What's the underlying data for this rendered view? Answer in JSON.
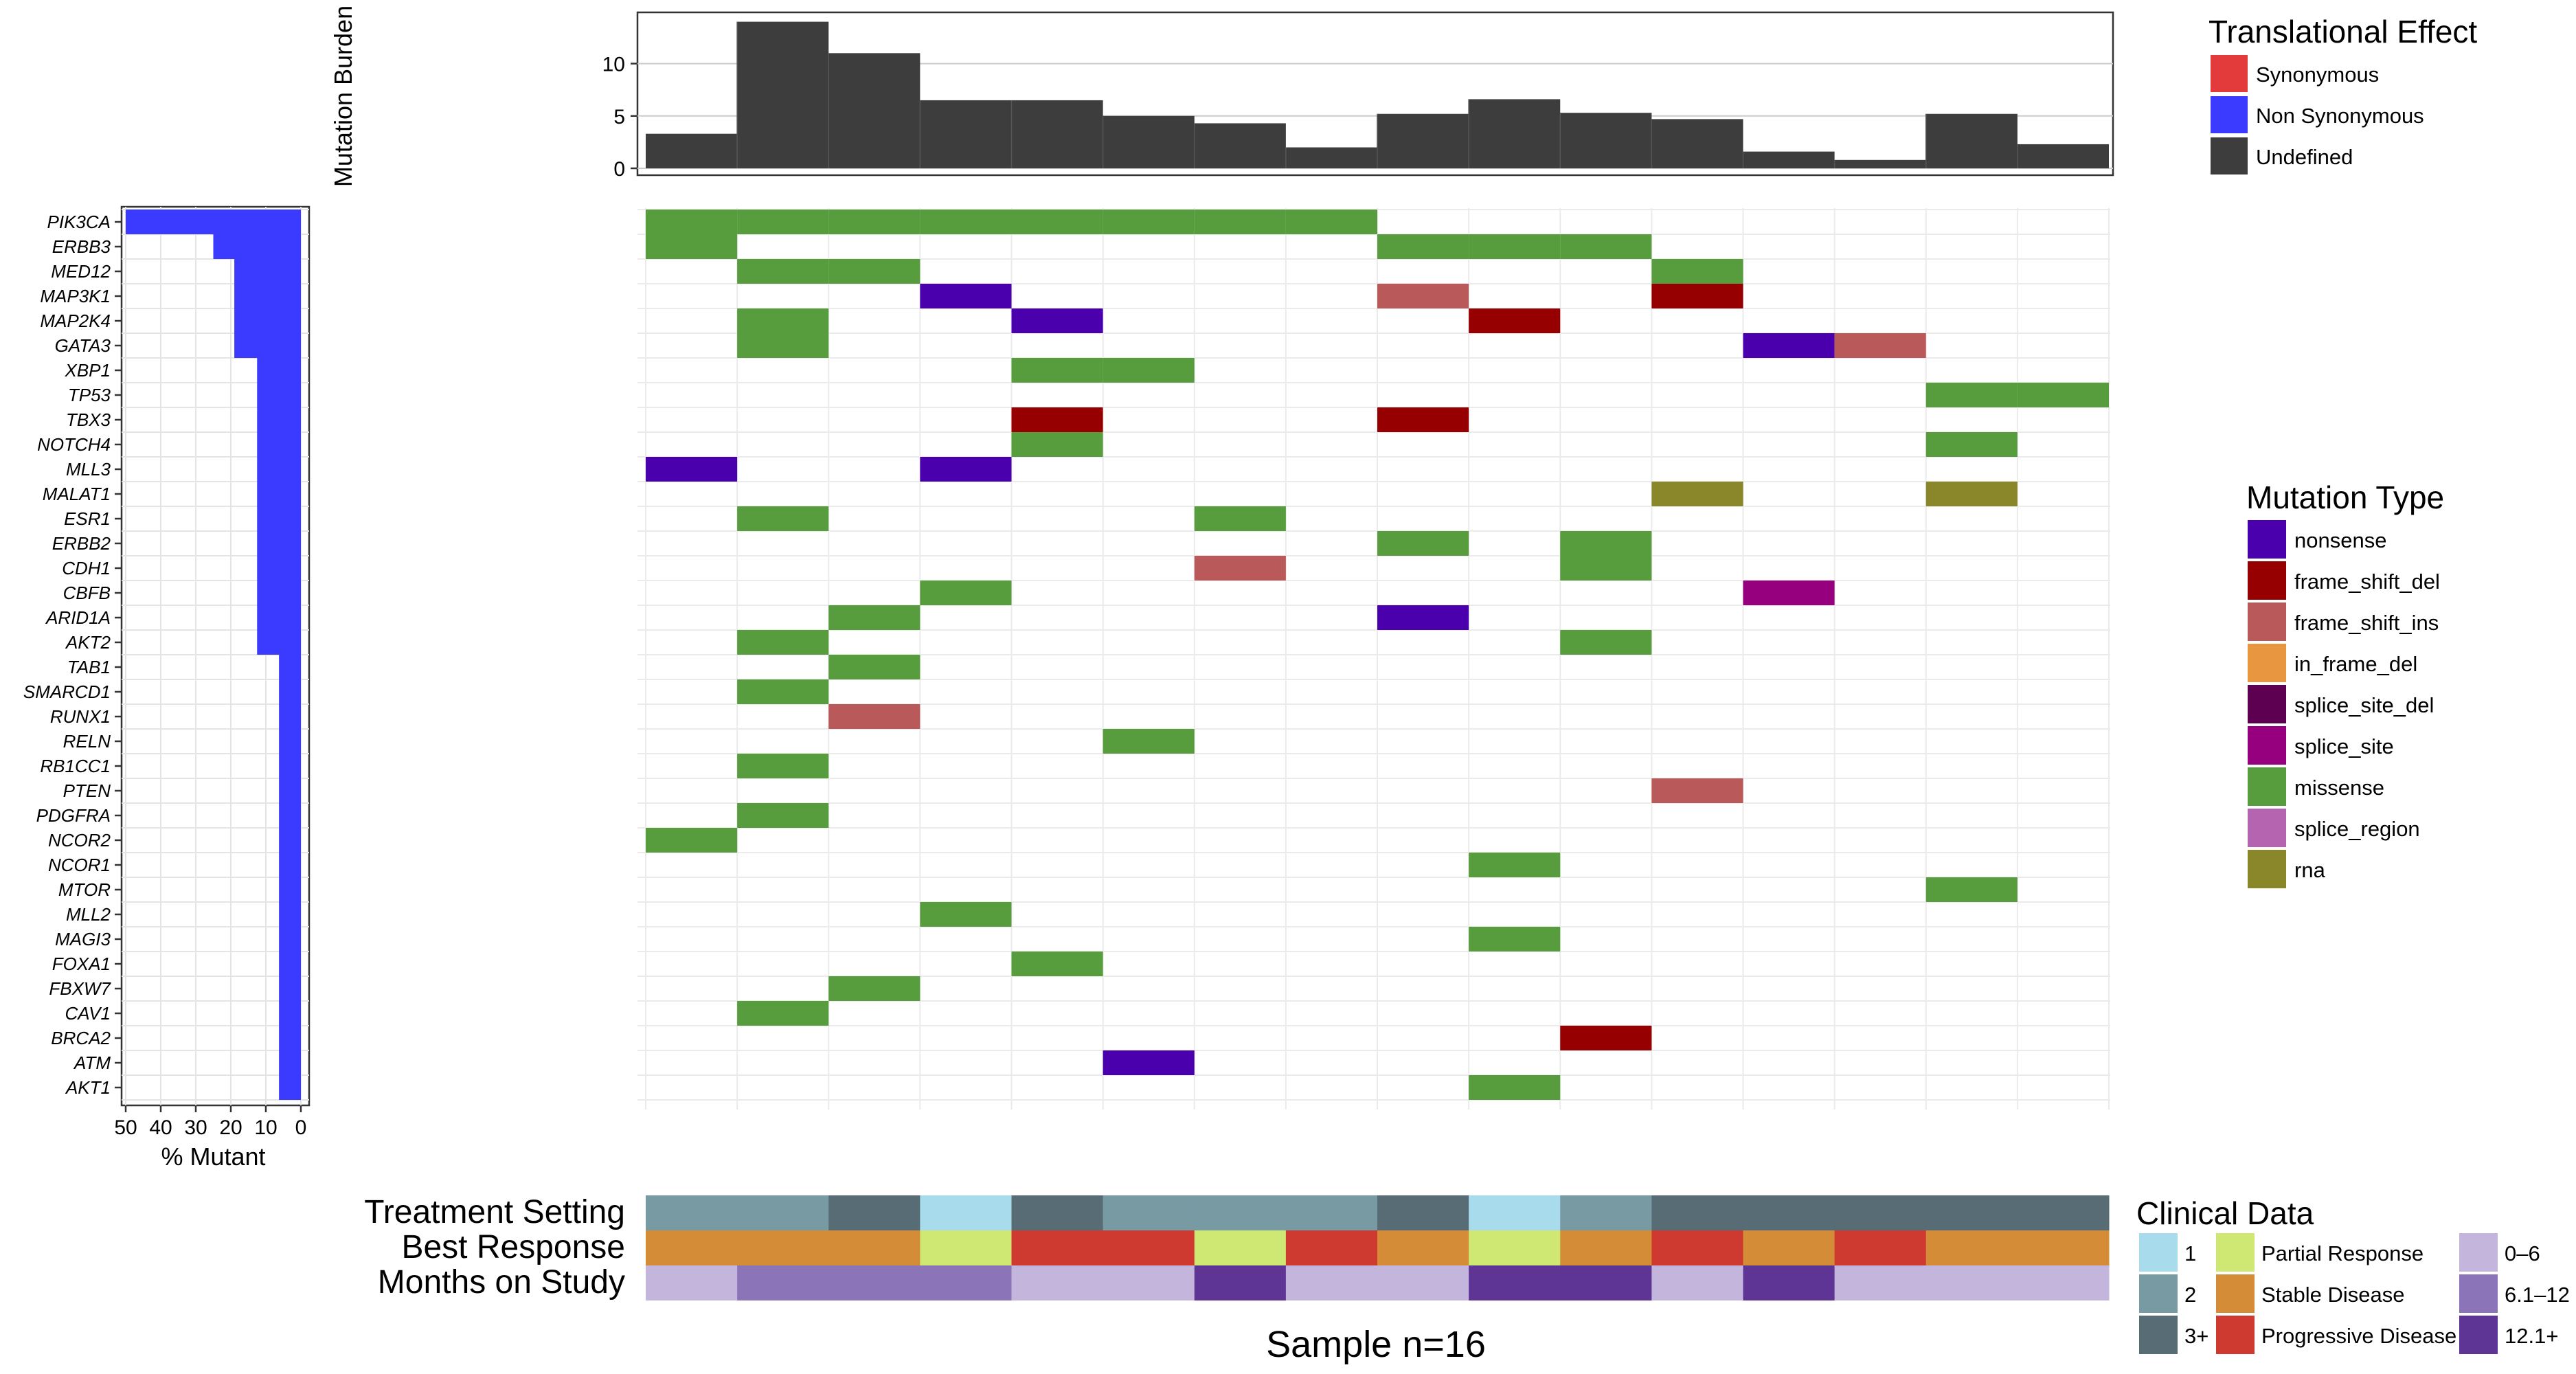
{
  "chart_data": {
    "type": "heatmap",
    "title": "",
    "samples_count": 16,
    "xlabel": "Sample n=16",
    "genes": [
      "PIK3CA",
      "ERBB3",
      "MED12",
      "MAP3K1",
      "MAP2K4",
      "GATA3",
      "XBP1",
      "TP53",
      "TBX3",
      "NOTCH4",
      "MLL3",
      "MALAT1",
      "ESR1",
      "ERBB2",
      "CDH1",
      "CBFB",
      "ARID1A",
      "AKT2",
      "TAB1",
      "SMARCD1",
      "RUNX1",
      "RELN",
      "RB1CC1",
      "PTEN",
      "PDGFRA",
      "NCOR2",
      "NCOR1",
      "MTOR",
      "MLL2",
      "MAGI3",
      "FOXA1",
      "FBXW7",
      "CAV1",
      "BRCA2",
      "ATM",
      "AKT1"
    ],
    "mutations": [
      {
        "gene": "PIK3CA",
        "samples": [
          1,
          2,
          3,
          4,
          5,
          6,
          7,
          8
        ],
        "type": "missense"
      },
      {
        "gene": "ERBB3",
        "samples": [
          1,
          9,
          10,
          11
        ],
        "type": "missense"
      },
      {
        "gene": "MED12",
        "samples": [
          2,
          3,
          12
        ],
        "type": "missense"
      },
      {
        "gene": "MAP3K1",
        "samples": [
          4
        ],
        "type": "nonsense"
      },
      {
        "gene": "MAP3K1",
        "samples": [
          9
        ],
        "type": "frame_shift_ins"
      },
      {
        "gene": "MAP3K1",
        "samples": [
          12
        ],
        "type": "frame_shift_del"
      },
      {
        "gene": "MAP2K4",
        "samples": [
          2
        ],
        "type": "missense"
      },
      {
        "gene": "MAP2K4",
        "samples": [
          5
        ],
        "type": "nonsense"
      },
      {
        "gene": "MAP2K4",
        "samples": [
          10
        ],
        "type": "frame_shift_del"
      },
      {
        "gene": "GATA3",
        "samples": [
          2
        ],
        "type": "missense"
      },
      {
        "gene": "GATA3",
        "samples": [
          13
        ],
        "type": "nonsense"
      },
      {
        "gene": "GATA3",
        "samples": [
          14
        ],
        "type": "frame_shift_ins"
      },
      {
        "gene": "XBP1",
        "samples": [
          5,
          6
        ],
        "type": "missense"
      },
      {
        "gene": "TP53",
        "samples": [
          15,
          16
        ],
        "type": "missense"
      },
      {
        "gene": "TBX3",
        "samples": [
          5,
          9
        ],
        "type": "frame_shift_del"
      },
      {
        "gene": "NOTCH4",
        "samples": [
          5,
          15
        ],
        "type": "missense"
      },
      {
        "gene": "MLL3",
        "samples": [
          1,
          4
        ],
        "type": "nonsense"
      },
      {
        "gene": "MALAT1",
        "samples": [
          12,
          15
        ],
        "type": "rna"
      },
      {
        "gene": "ESR1",
        "samples": [
          2,
          7
        ],
        "type": "missense"
      },
      {
        "gene": "ERBB2",
        "samples": [
          9,
          11
        ],
        "type": "missense"
      },
      {
        "gene": "CDH1",
        "samples": [
          7
        ],
        "type": "frame_shift_ins"
      },
      {
        "gene": "CDH1",
        "samples": [
          11
        ],
        "type": "missense"
      },
      {
        "gene": "CBFB",
        "samples": [
          4
        ],
        "type": "missense"
      },
      {
        "gene": "CBFB",
        "samples": [
          13
        ],
        "type": "splice_site"
      },
      {
        "gene": "ARID1A",
        "samples": [
          3
        ],
        "type": "missense"
      },
      {
        "gene": "ARID1A",
        "samples": [
          9
        ],
        "type": "nonsense"
      },
      {
        "gene": "AKT2",
        "samples": [
          2,
          11
        ],
        "type": "missense"
      },
      {
        "gene": "TAB1",
        "samples": [
          3
        ],
        "type": "missense"
      },
      {
        "gene": "SMARCD1",
        "samples": [
          2
        ],
        "type": "missense"
      },
      {
        "gene": "RUNX1",
        "samples": [
          3
        ],
        "type": "frame_shift_ins"
      },
      {
        "gene": "RELN",
        "samples": [
          6
        ],
        "type": "missense"
      },
      {
        "gene": "RB1CC1",
        "samples": [
          2
        ],
        "type": "missense"
      },
      {
        "gene": "PTEN",
        "samples": [
          12
        ],
        "type": "frame_shift_ins"
      },
      {
        "gene": "PDGFRA",
        "samples": [
          2
        ],
        "type": "missense"
      },
      {
        "gene": "NCOR2",
        "samples": [
          1
        ],
        "type": "missense"
      },
      {
        "gene": "NCOR1",
        "samples": [
          10
        ],
        "type": "missense"
      },
      {
        "gene": "MTOR",
        "samples": [
          15
        ],
        "type": "missense"
      },
      {
        "gene": "MLL2",
        "samples": [
          4
        ],
        "type": "missense"
      },
      {
        "gene": "MAGI3",
        "samples": [
          10
        ],
        "type": "missense"
      },
      {
        "gene": "FOXA1",
        "samples": [
          5
        ],
        "type": "missense"
      },
      {
        "gene": "FBXW7",
        "samples": [
          3
        ],
        "type": "missense"
      },
      {
        "gene": "CAV1",
        "samples": [
          2
        ],
        "type": "missense"
      },
      {
        "gene": "BRCA2",
        "samples": [
          11
        ],
        "type": "frame_shift_del"
      },
      {
        "gene": "ATM",
        "samples": [
          6
        ],
        "type": "nonsense"
      },
      {
        "gene": "AKT1",
        "samples": [
          10
        ],
        "type": "missense"
      }
    ],
    "percent_mutant": {
      "values": [
        50,
        25,
        19,
        19,
        19,
        19,
        12.5,
        12.5,
        12.5,
        12.5,
        12.5,
        12.5,
        12.5,
        12.5,
        12.5,
        12.5,
        12.5,
        12.5,
        6.25,
        6.25,
        6.25,
        6.25,
        6.25,
        6.25,
        6.25,
        6.25,
        6.25,
        6.25,
        6.25,
        6.25,
        6.25,
        6.25,
        6.25,
        6.25,
        6.25,
        6.25
      ],
      "xlabel": "% Mutant",
      "xlim": [
        50,
        0
      ],
      "ticks": [
        "50",
        "40",
        "30",
        "20",
        "10",
        "0"
      ],
      "color": "#3b3bff"
    },
    "mutation_burden": {
      "values": [
        3.3,
        14,
        11,
        6.5,
        6.5,
        5,
        4.3,
        2,
        5.2,
        6.6,
        5.3,
        4.7,
        1.6,
        0.8,
        5.2,
        2.3
      ],
      "ylabel": "Mutation Burden",
      "ylim": [
        0,
        14.5
      ],
      "ticks": [
        "0",
        "5",
        "10"
      ],
      "color": "#3d3d3d",
      "grid": true
    },
    "translational_effect_legend": {
      "title": "Translational Effect",
      "items": [
        {
          "label": "Synonymous",
          "color": "#e33b3b"
        },
        {
          "label": "Non Synonymous",
          "color": "#3b3bff"
        },
        {
          "label": "Undefined",
          "color": "#3d3d3d"
        }
      ]
    },
    "mutation_type_legend": {
      "title": "Mutation Type",
      "items": [
        {
          "key": "nonsense",
          "label": "nonsense",
          "color": "#4a00ad"
        },
        {
          "key": "frame_shift_del",
          "label": "frame_shift_del",
          "color": "#960000"
        },
        {
          "key": "frame_shift_ins",
          "label": "frame_shift_ins",
          "color": "#ba5959"
        },
        {
          "key": "in_frame_del",
          "label": "in_frame_del",
          "color": "#e8963f"
        },
        {
          "key": "splice_site_del",
          "label": "splice_site_del",
          "color": "#5e0052"
        },
        {
          "key": "splice_site",
          "label": "splice_site",
          "color": "#96007e"
        },
        {
          "key": "missense",
          "label": "missense",
          "color": "#579c3d"
        },
        {
          "key": "splice_region",
          "label": "splice_region",
          "color": "#b564b0"
        },
        {
          "key": "rna",
          "label": "rna",
          "color": "#8a862a"
        }
      ]
    },
    "clinical": {
      "rows": [
        {
          "label": "Treatment Setting",
          "values": [
            "2",
            "2",
            "3+",
            "1",
            "3+",
            "2",
            "2",
            "2",
            "3+",
            "1",
            "2",
            "3+",
            "3+",
            "3+",
            "3+",
            "3+"
          ]
        },
        {
          "label": "Best Response",
          "values": [
            "Stable Disease",
            "Stable Disease",
            "Stable Disease",
            "Partial Response",
            "Progressive Disease",
            "Progressive Disease",
            "Partial Response",
            "Progressive Disease",
            "Stable Disease",
            "Partial Response",
            "Stable Disease",
            "Progressive Disease",
            "Stable Disease",
            "Progressive Disease",
            "Stable Disease",
            "Stable Disease"
          ]
        },
        {
          "label": "Months on Study",
          "values": [
            "0-6",
            "6.1-12",
            "6.1-12",
            "6.1-12",
            "0-6",
            "0-6",
            "12.1+",
            "0-6",
            "0-6",
            "12.1+",
            "12.1+",
            "0-6",
            "12.1+",
            "0-6",
            "0-6",
            "0-6"
          ]
        }
      ],
      "legend": {
        "title": "Clinical Data",
        "columns": [
          [
            {
              "key": "1",
              "label": "1",
              "color": "#a8dbeb"
            },
            {
              "key": "2",
              "label": "2",
              "color": "#779aa3"
            },
            {
              "key": "3+",
              "label": "3+",
              "color": "#576c74"
            }
          ],
          [
            {
              "key": "Partial Response",
              "label": "Partial Response",
              "color": "#cfe874"
            },
            {
              "key": "Stable Disease",
              "label": "Stable Disease",
              "color": "#d58c37"
            },
            {
              "key": "Progressive Disease",
              "label": "Progressive Disease",
              "color": "#cf3a30"
            }
          ],
          [
            {
              "key": "0-6",
              "label": "0–6",
              "color": "#c3b5db"
            },
            {
              "key": "6.1-12",
              "label": "6.1–12",
              "color": "#8c74b8"
            },
            {
              "key": "12.1+",
              "label": "12.1+",
              "color": "#5e3594"
            }
          ]
        ]
      }
    }
  }
}
